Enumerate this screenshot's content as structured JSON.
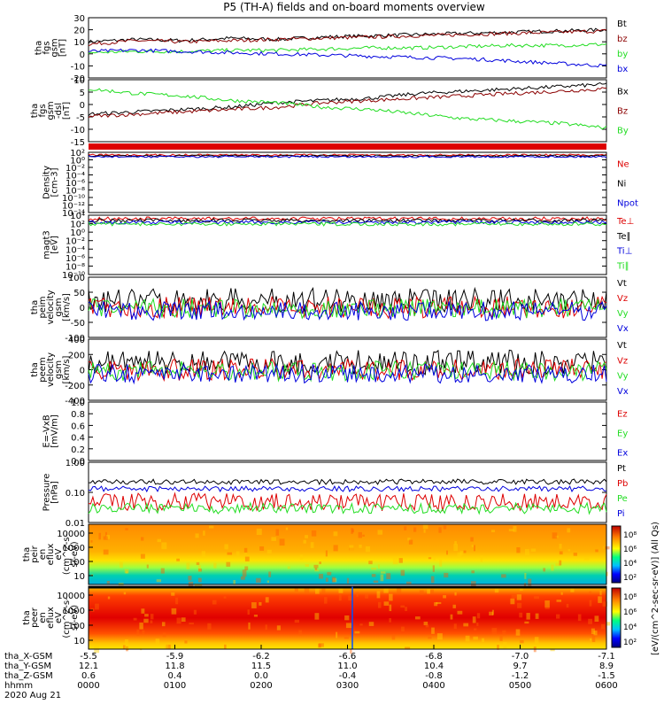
{
  "title": "P5 (TH-A) fields and on-board moments overview",
  "colors": {
    "black": "#000000",
    "red": "#dd0000",
    "green": "#22dd22",
    "blue": "#0000dd",
    "darkred": "#8b0000"
  },
  "chart_data": [
    {
      "id": "fgs_gsm",
      "type": "line",
      "ylabel": [
        "tha",
        "fgs",
        "gsm",
        "[nT]"
      ],
      "ylim": [
        -20,
        30
      ],
      "yticks": [
        "30",
        "20",
        "10",
        "0",
        "-10",
        "-20"
      ],
      "series": [
        {
          "name": "Bt",
          "color": "#000000",
          "values": [
            10,
            12,
            11,
            13,
            12,
            14,
            15,
            16,
            17,
            18,
            19,
            20
          ]
        },
        {
          "name": "bz",
          "color": "#8b0000",
          "values": [
            8,
            11,
            10,
            11,
            12,
            13,
            14,
            15,
            16,
            17,
            18,
            19
          ]
        },
        {
          "name": "by",
          "color": "#22dd22",
          "values": [
            1,
            2,
            2,
            3,
            3,
            4,
            5,
            5,
            6,
            7,
            7,
            8
          ]
        },
        {
          "name": "bx",
          "color": "#0000dd",
          "values": [
            2,
            3,
            2,
            1,
            0,
            -1,
            -2,
            -3,
            -4,
            -6,
            -8,
            -10
          ]
        }
      ]
    },
    {
      "id": "fgs_gsm_dsl",
      "type": "line",
      "ylabel": [
        "tha",
        "fgs",
        "gsm",
        "-dsl",
        "[nT]"
      ],
      "ylim": [
        -17,
        10
      ],
      "yticks": [
        "10",
        "5",
        "0",
        "-5",
        "-10",
        "-15"
      ],
      "series": [
        {
          "name": "Bx",
          "color": "#000000",
          "values": [
            -5,
            -4,
            -3,
            -2,
            0,
            1,
            2,
            4,
            5,
            6,
            7,
            8
          ]
        },
        {
          "name": "Bz",
          "color": "#8b0000",
          "values": [
            -6,
            -5,
            -4,
            -3,
            -2,
            0,
            1,
            2,
            3,
            4,
            5,
            6
          ]
        },
        {
          "name": "By",
          "color": "#22dd22",
          "values": [
            6,
            4,
            3,
            1,
            0,
            -2,
            -3,
            -5,
            -7,
            -8,
            -9,
            -11
          ]
        }
      ]
    },
    {
      "id": "density",
      "type": "line",
      "ylabel": [
        "Density",
        "[cm-3]"
      ],
      "ylim": [
        -14,
        2
      ],
      "scale": "log",
      "yticks": [
        "10²",
        "10⁰",
        "10⁻²",
        "10⁻⁴",
        "10⁻⁶",
        "10⁻⁸",
        "10⁻¹⁰",
        "10⁻¹²",
        "10⁻¹⁴"
      ],
      "series": [
        {
          "name": "Ne",
          "color": "#dd0000"
        },
        {
          "name": "Ni",
          "color": "#000000"
        },
        {
          "name": "Npot",
          "color": "#0000dd"
        }
      ]
    },
    {
      "id": "temperature",
      "type": "line",
      "ylabel": [
        "magt3",
        "[eV]"
      ],
      "ylim": [
        -10,
        4
      ],
      "scale": "log",
      "yticks": [
        "10⁴",
        "10²",
        "10⁰",
        "10⁻²",
        "10⁻⁴",
        "10⁻⁶",
        "10⁻⁸",
        "10⁻¹⁰"
      ],
      "series": [
        {
          "name": "Te⊥",
          "color": "#dd0000"
        },
        {
          "name": "Te∥",
          "color": "#000000"
        },
        {
          "name": "Ti⊥",
          "color": "#0000dd"
        },
        {
          "name": "Ti∥",
          "color": "#22dd22"
        }
      ]
    },
    {
      "id": "peim_velocity",
      "type": "line",
      "ylabel": [
        "tha",
        "peim",
        "velocity",
        "gsm",
        "[km/s]"
      ],
      "ylim": [
        -100,
        100
      ],
      "yticks": [
        "100",
        "50",
        "0",
        "-50",
        "-100"
      ],
      "series": [
        {
          "name": "Vt",
          "color": "#000000"
        },
        {
          "name": "Vz",
          "color": "#dd0000"
        },
        {
          "name": "Vy",
          "color": "#22dd22"
        },
        {
          "name": "Vx",
          "color": "#0000dd"
        }
      ]
    },
    {
      "id": "peem_velocity",
      "type": "line",
      "ylabel": [
        "tha",
        "peem",
        "velocity",
        "gsm",
        "[km/s]"
      ],
      "ylim": [
        -400,
        400
      ],
      "yticks": [
        "400",
        "200",
        "0",
        "-200",
        "-400"
      ],
      "series": [
        {
          "name": "Vt",
          "color": "#000000"
        },
        {
          "name": "Vz",
          "color": "#dd0000"
        },
        {
          "name": "Vy",
          "color": "#22dd22"
        },
        {
          "name": "Vx",
          "color": "#0000dd"
        }
      ]
    },
    {
      "id": "efield",
      "type": "line",
      "ylabel": [
        "E=-VxB",
        "[mV/m]"
      ],
      "ylim": [
        0,
        1
      ],
      "yticks": [
        "1.0",
        "0.8",
        "0.6",
        "0.4",
        "0.2",
        "0.0"
      ],
      "series": [
        {
          "name": "Ez",
          "color": "#dd0000"
        },
        {
          "name": "Ey",
          "color": "#22dd22"
        },
        {
          "name": "Ex",
          "color": "#0000dd"
        }
      ]
    },
    {
      "id": "pressure",
      "type": "line",
      "ylabel": [
        "Pressure",
        "[nPa]"
      ],
      "ylim": [
        0.01,
        1.0
      ],
      "scale": "log",
      "yticks": [
        "1.00",
        "0.10",
        "0.01"
      ],
      "series": [
        {
          "name": "Pt",
          "color": "#000000"
        },
        {
          "name": "Pb",
          "color": "#dd0000"
        },
        {
          "name": "Pe",
          "color": "#22dd22"
        },
        {
          "name": "Pi",
          "color": "#0000dd"
        }
      ]
    },
    {
      "id": "peir_spectrogram",
      "type": "heatmap",
      "ylabel": [
        "tha",
        "peir",
        "en",
        "eflux",
        "eV",
        "(cm^2-s-",
        "sr-eV)"
      ],
      "yticks": [
        "10000",
        "1000",
        "100",
        "10"
      ],
      "colorbar_ticks": [
        "10⁸",
        "10⁶",
        "10⁴",
        "10²"
      ],
      "colorbar_label": "[eV/(cm^2-sec-sr-eV)] (All Qs)"
    },
    {
      "id": "peer_spectrogram",
      "type": "heatmap",
      "ylabel": [
        "tha",
        "peer",
        "en",
        "eflux",
        "eV",
        "(cm^2-s-",
        "sr-eV)"
      ],
      "yticks": [
        "10000",
        "1000",
        "100",
        "10"
      ],
      "colorbar_ticks": [
        "10⁸",
        "10⁶",
        "10⁴",
        "10²"
      ]
    }
  ],
  "xaxis": {
    "rows": [
      {
        "label": "tha_X-GSM",
        "values": [
          "-5.5",
          "-5.9",
          "-6.2",
          "-6.6",
          "-6.8",
          "-7.0",
          "-7.1"
        ]
      },
      {
        "label": "tha_Y-GSM",
        "values": [
          "12.1",
          "11.8",
          "11.5",
          "11.0",
          "10.4",
          "9.7",
          "8.9"
        ]
      },
      {
        "label": "tha_Z-GSM",
        "values": [
          "0.6",
          "0.4",
          "0.0",
          "-0.4",
          "-0.8",
          "-1.2",
          "-1.5"
        ]
      },
      {
        "label": "hhmm",
        "values": [
          "0000",
          "0100",
          "0200",
          "0300",
          "0400",
          "0500",
          "0600"
        ]
      }
    ],
    "date": "2020 Aug 21"
  }
}
